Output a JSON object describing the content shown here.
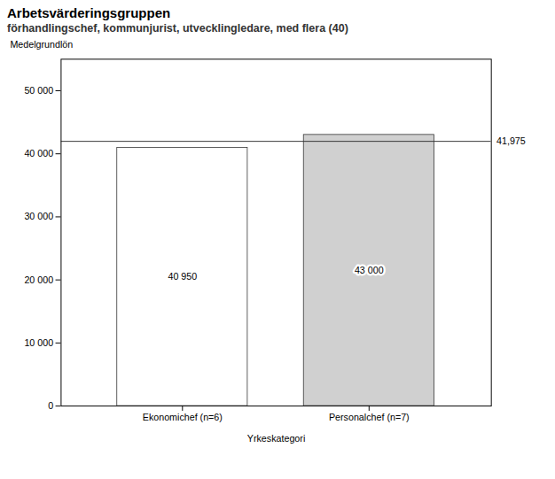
{
  "chart_data": {
    "type": "bar",
    "title": "Arbetsvärderingsgruppen",
    "subtitle": "förhandlingschef, kommunjurist, utvecklingledare, med flera (40)",
    "xlabel": "Yrkeskategori",
    "ylabel": "Medelgrundlön",
    "categories": [
      "Ekonomichef (n=6)",
      "Personalchef (n=7)"
    ],
    "values": [
      40950,
      43000
    ],
    "value_labels": [
      "40 950",
      "43 000"
    ],
    "data_labels": true,
    "colors": [
      "#ffffff",
      "#d0d0d0"
    ],
    "reference_line": {
      "value": 41975,
      "label": "41,975"
    },
    "ylim": [
      0,
      55000
    ],
    "yticks": [
      0,
      {
        "value": 10000,
        "label": "10 000"
      },
      {
        "value": 20000,
        "label": "20 000"
      },
      {
        "value": 30000,
        "label": "30 000"
      },
      {
        "value": 40000,
        "label": "40 000"
      },
      {
        "value": 50000,
        "label": "50 000"
      }
    ],
    "grid": false
  }
}
